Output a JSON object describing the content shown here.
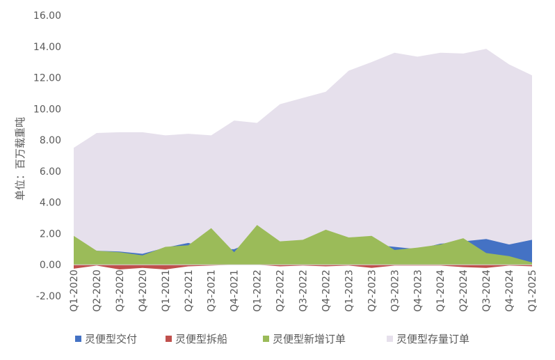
{
  "chart_data": {
    "type": "area",
    "ylabel": "单位：百万载重吨",
    "ylim": [
      -2,
      16
    ],
    "yticks": [
      "-2.00",
      "0.00",
      "2.00",
      "4.00",
      "6.00",
      "8.00",
      "10.00",
      "12.00",
      "14.00",
      "16.00"
    ],
    "categories": [
      "Q1-2020",
      "Q2-2020",
      "Q3-2020",
      "Q4-2020",
      "Q1-2021",
      "Q2-2021",
      "Q3-2021",
      "Q4-2021",
      "Q1-2022",
      "Q2-2022",
      "Q3-2022",
      "Q4-2022",
      "Q1-2023",
      "Q2-2023",
      "Q3-2023",
      "Q4-2023",
      "Q1-2024",
      "Q2-2024",
      "Q3-2024",
      "Q4-2024",
      "Q1-2025"
    ],
    "series": [
      {
        "name": "灵便型交付",
        "color": "#4472C4",
        "values": [
          1.6,
          0.9,
          0.85,
          0.7,
          1.1,
          1.4,
          1.0,
          1.0,
          1.6,
          1.3,
          1.4,
          1.5,
          1.5,
          1.3,
          1.15,
          1.0,
          1.35,
          1.5,
          1.65,
          1.3,
          1.6
        ]
      },
      {
        "name": "灵便型拆船",
        "color": "#C0504D",
        "values": [
          -0.25,
          -0.05,
          -0.3,
          -0.2,
          -0.3,
          -0.1,
          -0.05,
          0,
          0,
          -0.1,
          -0.05,
          -0.1,
          -0.05,
          -0.2,
          -0.05,
          -0.05,
          -0.05,
          -0.15,
          -0.2,
          -0.05,
          -0.1
        ]
      },
      {
        "name": "灵便型新增订单",
        "color": "#9BBB59",
        "values": [
          1.85,
          0.9,
          0.8,
          0.6,
          1.15,
          1.25,
          2.35,
          0.8,
          2.55,
          1.5,
          1.6,
          2.25,
          1.75,
          1.85,
          0.95,
          1.1,
          1.3,
          1.7,
          0.75,
          0.55,
          0.15
        ]
      },
      {
        "name": "灵便型存量订单",
        "color": "#E6E0EC",
        "values": [
          7.5,
          8.45,
          8.5,
          8.5,
          8.3,
          8.4,
          8.3,
          9.25,
          9.1,
          10.3,
          10.7,
          11.1,
          12.45,
          13.0,
          13.6,
          13.35,
          13.6,
          13.55,
          13.85,
          12.85,
          12.15
        ]
      }
    ],
    "legend_position": "bottom",
    "grid": false
  }
}
